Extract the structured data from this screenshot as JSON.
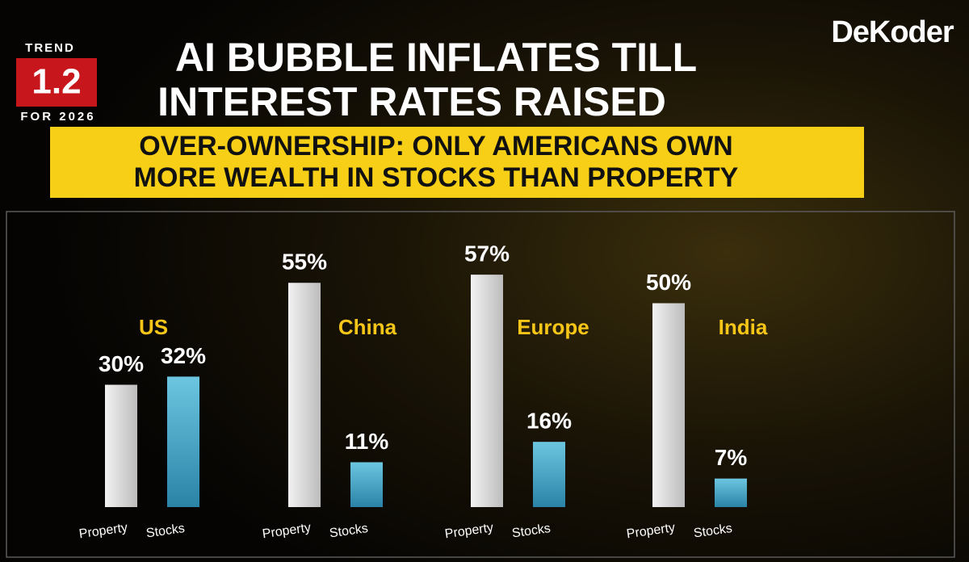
{
  "brand": "DeKoder",
  "badge": {
    "top": "TREND",
    "number": "1.2",
    "bottom": "FOR 2026"
  },
  "chart_data": {
    "type": "bar",
    "title": [
      "AI BUBBLE INFLATES TILL",
      "INTEREST RATES RAISED"
    ],
    "subtitle": [
      "OVER-OWNERSHIP: ONLY AMERICANS OWN",
      "MORE WEALTH IN STOCKS THAN PROPERTY"
    ],
    "categories": [
      "US",
      "China",
      "Europe",
      "India"
    ],
    "series": [
      {
        "name": "Property",
        "color": "#d9d9d9",
        "values": [
          30,
          55,
          57,
          50
        ],
        "value_labels": [
          "30%",
          "55%",
          "57%",
          "50%"
        ]
      },
      {
        "name": "Stocks",
        "color": "#3a9cc0",
        "values": [
          32,
          11,
          16,
          7
        ],
        "value_labels": [
          "32%",
          "11%",
          "16%",
          "7%"
        ]
      }
    ]
  }
}
